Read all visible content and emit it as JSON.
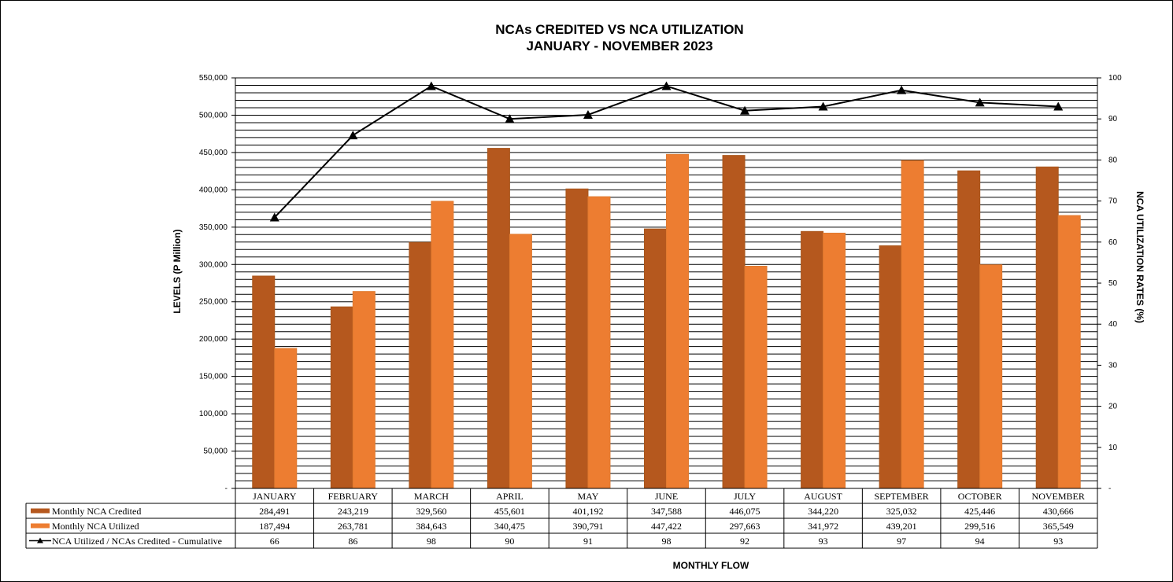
{
  "chart_data": {
    "type": "bar",
    "title": "NCAs CREDITED VS NCA UTILIZATION",
    "subtitle": "JANUARY  - NOVEMBER 2023",
    "ylabel": "LEVELS  (P Million)",
    "ylabel_right": "NCA  UTILIZATION  RATES  (%)",
    "xlabel": "MONTHLY  FLOW",
    "ylim": [
      0,
      550000
    ],
    "y2lim": [
      0,
      100
    ],
    "grid": true,
    "y_ticks": [
      "-",
      "50,000",
      "100,000",
      "150,000",
      "200,000",
      "250,000",
      "300,000",
      "350,000",
      "400,000",
      "450,000",
      "500,000",
      "550,000"
    ],
    "y2_ticks": [
      "-",
      "10",
      "20",
      "30",
      "40",
      "50",
      "60",
      "70",
      "80",
      "90",
      "100"
    ],
    "categories": [
      "JANUARY",
      "FEBRUARY",
      "MARCH",
      "APRIL",
      "MAY",
      "JUNE",
      "JULY",
      "AUGUST",
      "SEPTEMBER",
      "OCTOBER",
      "NOVEMBER"
    ],
    "series": [
      {
        "name": "Monthly NCA Credited",
        "kind": "bar",
        "color": "#b5581e",
        "values": [
          284491,
          243219,
          329560,
          455601,
          401192,
          347588,
          446075,
          344220,
          325032,
          425446,
          430666
        ],
        "labels": [
          "284,491",
          "243,219",
          "329,560",
          "455,601",
          "401,192",
          "347,588",
          "446,075",
          "344,220",
          "325,032",
          "425,446",
          "430,666"
        ]
      },
      {
        "name": "Monthly NCA Utilized",
        "kind": "bar",
        "color": "#ed7d31",
        "values": [
          187494,
          263781,
          384643,
          340475,
          390791,
          447422,
          297663,
          341972,
          439201,
          299516,
          365549
        ],
        "labels": [
          "187,494",
          "263,781",
          "384,643",
          "340,475",
          "390,791",
          "447,422",
          "297,663",
          "341,972",
          "439,201",
          "299,516",
          "365,549"
        ]
      },
      {
        "name": "NCA Utilized / NCAs Credited - Cumulative",
        "kind": "line",
        "axis": "right",
        "color": "#000000",
        "values": [
          66,
          86,
          98,
          90,
          91,
          98,
          92,
          93,
          97,
          94,
          93
        ],
        "labels": [
          "66",
          "86",
          "98",
          "90",
          "91",
          "98",
          "92",
          "93",
          "97",
          "94",
          "93"
        ]
      }
    ]
  }
}
